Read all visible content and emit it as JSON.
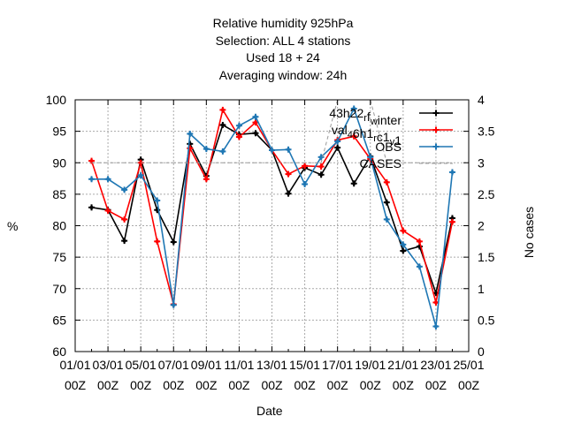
{
  "chart_data": {
    "type": "line",
    "title_lines": [
      "Relative humidity 925hPa",
      "Selection: ALL       4 stations",
      "Used  18  + 24",
      "Averaging window: 24h"
    ],
    "xlabel": "Date",
    "ylabel": "%",
    "y2label": "No cases",
    "ylim": [
      60,
      100
    ],
    "y2lim": [
      0,
      4
    ],
    "y_ticks": [
      60,
      65,
      70,
      75,
      80,
      85,
      90,
      95,
      100
    ],
    "y2_ticks": [
      0,
      0.5,
      1,
      1.5,
      2,
      2.5,
      3,
      3.5,
      4
    ],
    "x_ticks": [
      "01/01 00Z",
      "03/01 00Z",
      "05/01 00Z",
      "07/01 00Z",
      "09/01 00Z",
      "11/01 00Z",
      "13/01 00Z",
      "15/01 00Z",
      "17/01 00Z",
      "19/01 00Z",
      "21/01 00Z",
      "23/01 00Z",
      "25/01 00Z"
    ],
    "x_day_range": [
      1,
      25
    ],
    "x": [
      2,
      3,
      4,
      5,
      6,
      7,
      8,
      9,
      10,
      11,
      12,
      13,
      14,
      15,
      16,
      17,
      18,
      19,
      20,
      21,
      22,
      23,
      24
    ],
    "grid": true,
    "legend_position": "top-right",
    "series": [
      {
        "name": "43h22_{r}f_{w}inter",
        "color": "#000000",
        "values": [
          82.9,
          82.5,
          77.6,
          90.5,
          82.5,
          77.4,
          93.0,
          87.9,
          96.0,
          94.5,
          94.7,
          92.0,
          85.1,
          89.2,
          88.1,
          92.4,
          86.7,
          91.0,
          83.7,
          76.0,
          76.7,
          69.3,
          81.2
        ]
      },
      {
        "name": "val_{4}6h1_{r}c1_{v}1",
        "color": "#ff0000",
        "values": [
          90.3,
          82.4,
          81.0,
          90.0,
          77.5,
          67.5,
          92.3,
          87.4,
          98.4,
          94.1,
          96.4,
          92.0,
          88.2,
          89.5,
          89.4,
          93.6,
          94.2,
          90.6,
          86.9,
          79.2,
          77.5,
          67.8,
          80.6
        ]
      },
      {
        "name": "OBS",
        "color": "#1f77b4",
        "values": [
          87.4,
          87.4,
          85.7,
          88.0,
          84.0,
          67.4,
          94.6,
          92.2,
          91.8,
          95.9,
          97.3,
          92.0,
          92.1,
          86.6,
          90.9,
          93.4,
          98.6,
          90.9,
          81.0,
          77.0,
          73.5,
          64.0,
          88.5
        ]
      },
      {
        "name": "CASES",
        "color": "#999999",
        "axis": "y2",
        "values": [
          3,
          3,
          3,
          3,
          3,
          3,
          3,
          3,
          3,
          3,
          3,
          3,
          3,
          3,
          3,
          4,
          4,
          4,
          3,
          3,
          3,
          3,
          3
        ]
      }
    ]
  }
}
